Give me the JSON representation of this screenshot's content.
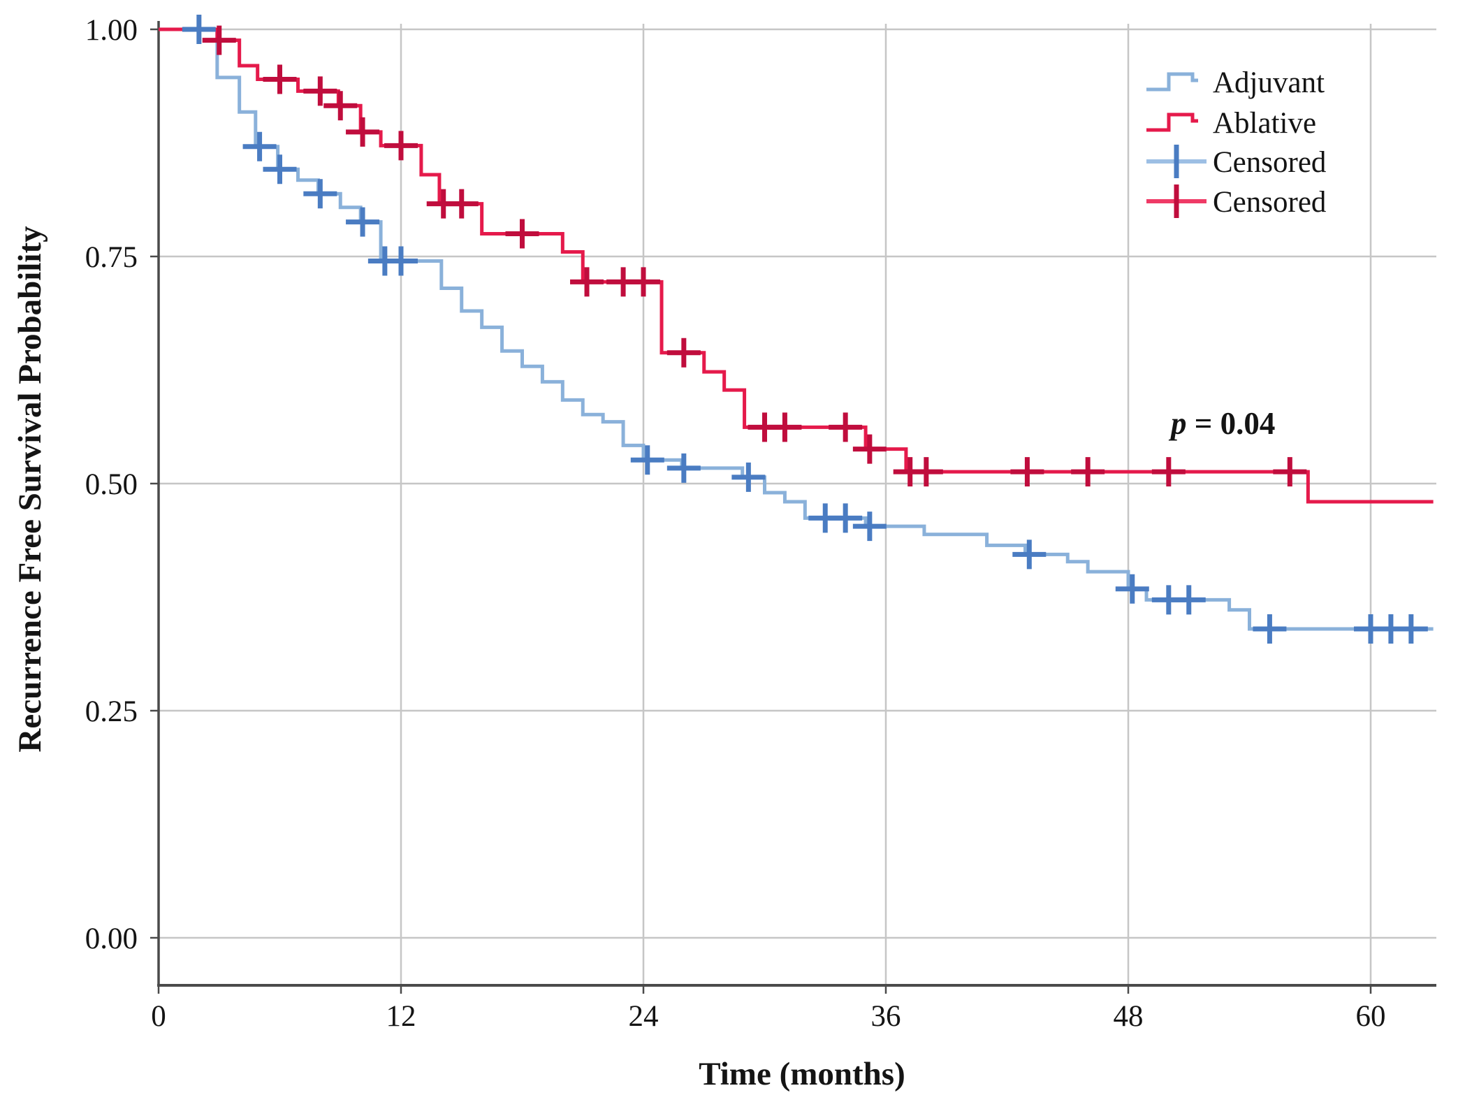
{
  "figure": {
    "background_color": "#ffffff",
    "gridline_color": "#c6c6c6",
    "axis_line_color": "#4a4a4a",
    "text_color": "#141414"
  },
  "annotation": {
    "p_italic": "p",
    "p_rest": " = 0.04"
  },
  "axes": {
    "x": {
      "title": "Time (months)",
      "tick_labels": [
        "0",
        "12",
        "24",
        "36",
        "48",
        "60"
      ],
      "tick_values": [
        0,
        12,
        24,
        36,
        48,
        60
      ]
    },
    "y": {
      "title": "Recurrence Free Survival Probability",
      "tick_labels": [
        "1.00",
        "0.75",
        "0.50",
        "0.25",
        "0.00"
      ],
      "tick_values": [
        1.0,
        0.75,
        0.5,
        0.25,
        0.0
      ]
    }
  },
  "legend": {
    "items": [
      {
        "label": "Adjuvant",
        "symbol": "step-line-icon",
        "color": "#8ab1da",
        "mark_color": "#8ab1da"
      },
      {
        "label": "Ablative",
        "symbol": "step-line-icon",
        "color": "#e51a4b",
        "mark_color": "#e51a4b"
      },
      {
        "label": "Censored",
        "symbol": "censor-plus-icon",
        "color": "#9dbfe4",
        "mark_color": "#4a7cc2"
      },
      {
        "label": "Censored",
        "symbol": "censor-plus-icon",
        "color": "#ef3a66",
        "mark_color": "#c00d3d"
      }
    ]
  },
  "chart_data": {
    "type": "line",
    "subtype": "kaplan-meier-step",
    "title": "",
    "xlabel": "Time (months)",
    "ylabel": "Recurrence Free Survival Probability",
    "xlim": [
      0,
      63.2
    ],
    "ylim": [
      0.0,
      1.0
    ],
    "grid": true,
    "legend_position": "top-right",
    "p_value_annotation": "p = 0.04",
    "series": [
      {
        "name": "Adjuvant",
        "color": "#8ab1da",
        "censor_color": "#4a7cc2",
        "end_x_months": 63.1,
        "steps": [
          [
            0,
            1.0
          ],
          [
            2.9,
            0.947
          ],
          [
            4,
            0.909
          ],
          [
            4.8,
            0.871
          ],
          [
            5.9,
            0.846
          ],
          [
            6.9,
            0.834
          ],
          [
            7.9,
            0.819
          ],
          [
            9,
            0.804
          ],
          [
            10,
            0.788
          ],
          [
            11,
            0.745
          ],
          [
            14,
            0.715
          ],
          [
            15,
            0.69
          ],
          [
            16,
            0.672
          ],
          [
            17,
            0.646
          ],
          [
            18,
            0.629
          ],
          [
            19,
            0.612
          ],
          [
            20,
            0.592
          ],
          [
            21,
            0.576
          ],
          [
            22,
            0.568
          ],
          [
            23,
            0.542
          ],
          [
            24,
            0.526
          ],
          [
            25.9,
            0.517
          ],
          [
            28.9,
            0.507
          ],
          [
            30,
            0.49
          ],
          [
            31,
            0.48
          ],
          [
            32,
            0.462
          ],
          [
            35,
            0.453
          ],
          [
            37.9,
            0.444
          ],
          [
            41,
            0.432
          ],
          [
            42.9,
            0.422
          ],
          [
            45,
            0.414
          ],
          [
            46,
            0.403
          ],
          [
            48,
            0.384
          ],
          [
            48.9,
            0.372
          ],
          [
            53,
            0.361
          ],
          [
            54,
            0.34
          ]
        ],
        "censors": [
          [
            2,
            1.0
          ],
          [
            5,
            0.871
          ],
          [
            6,
            0.846
          ],
          [
            8,
            0.819
          ],
          [
            10.1,
            0.788
          ],
          [
            11.2,
            0.745
          ],
          [
            12,
            0.745
          ],
          [
            24.2,
            0.526
          ],
          [
            26,
            0.517
          ],
          [
            29.2,
            0.507
          ],
          [
            33,
            0.462
          ],
          [
            34,
            0.462
          ],
          [
            35.2,
            0.453
          ],
          [
            43.1,
            0.422
          ],
          [
            48.2,
            0.384
          ],
          [
            50,
            0.372
          ],
          [
            51,
            0.372
          ],
          [
            55,
            0.34
          ],
          [
            60,
            0.34
          ],
          [
            61,
            0.34
          ],
          [
            62,
            0.34
          ]
        ]
      },
      {
        "name": "Ablative",
        "color": "#e51a4b",
        "censor_color": "#c00d3d",
        "end_x_months": 63.1,
        "steps": [
          [
            0,
            1.0
          ],
          [
            2.9,
            0.988
          ],
          [
            4,
            0.96
          ],
          [
            4.9,
            0.945
          ],
          [
            6.9,
            0.932
          ],
          [
            8.9,
            0.916
          ],
          [
            10,
            0.887
          ],
          [
            11,
            0.872
          ],
          [
            13,
            0.84
          ],
          [
            13.9,
            0.808
          ],
          [
            16,
            0.775
          ],
          [
            20,
            0.755
          ],
          [
            21,
            0.722
          ],
          [
            24.9,
            0.644
          ],
          [
            27,
            0.623
          ],
          [
            28,
            0.603
          ],
          [
            29,
            0.562
          ],
          [
            35,
            0.538
          ],
          [
            37,
            0.513
          ],
          [
            56.9,
            0.48
          ]
        ],
        "censors": [
          [
            3,
            0.988
          ],
          [
            6,
            0.945
          ],
          [
            8,
            0.932
          ],
          [
            9,
            0.916
          ],
          [
            10.1,
            0.887
          ],
          [
            12,
            0.872
          ],
          [
            14.1,
            0.808
          ],
          [
            15,
            0.808
          ],
          [
            18,
            0.775
          ],
          [
            21.2,
            0.722
          ],
          [
            23,
            0.722
          ],
          [
            24,
            0.722
          ],
          [
            26,
            0.644
          ],
          [
            30,
            0.562
          ],
          [
            31,
            0.562
          ],
          [
            34,
            0.562
          ],
          [
            35.2,
            0.538
          ],
          [
            37.2,
            0.513
          ],
          [
            38,
            0.513
          ],
          [
            43,
            0.513
          ],
          [
            46,
            0.513
          ],
          [
            50,
            0.513
          ],
          [
            56,
            0.513
          ]
        ]
      }
    ]
  }
}
